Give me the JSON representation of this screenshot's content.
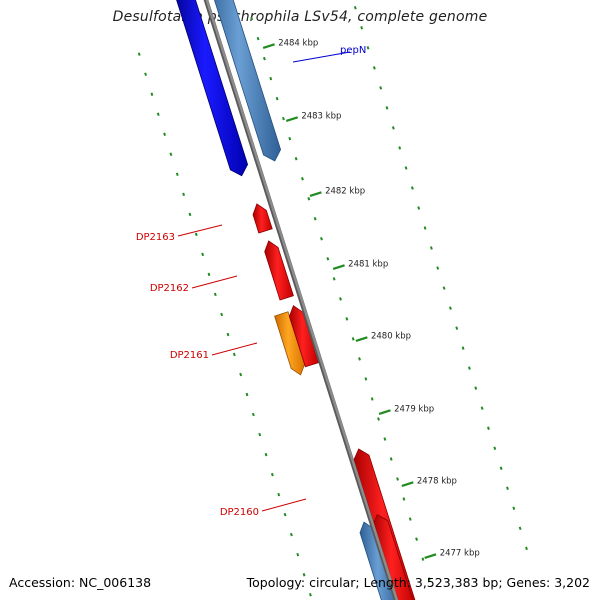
{
  "title": "Desulfotalea psychrophila LSv54, complete genome",
  "footer": {
    "accession": "Accession: NC_006138",
    "summary": "Topology: circular; Length: 3,523,383 bp; Genes: 3,202"
  },
  "scale": {
    "unit": "kbp",
    "ticks": [
      {
        "label": "2484 kbp",
        "value": 2484
      },
      {
        "label": "2483 kbp",
        "value": 2483
      },
      {
        "label": "2482 kbp",
        "value": 2482
      },
      {
        "label": "2481 kbp",
        "value": 2481
      },
      {
        "label": "2480 kbp",
        "value": 2480
      },
      {
        "label": "2479 kbp",
        "value": 2479
      },
      {
        "label": "2478 kbp",
        "value": 2478
      },
      {
        "label": "2477 kbp",
        "value": 2477
      }
    ]
  },
  "genes": [
    {
      "name": "pepN",
      "label_color": "#0000cc",
      "feature_color": "#0000ff"
    },
    {
      "name": "DP2163",
      "label_color": "#cc0000",
      "feature_color": "#ff0000"
    },
    {
      "name": "DP2162",
      "label_color": "#cc0000",
      "feature_color": "#ff0000"
    },
    {
      "name": "DP2161",
      "label_color": "#cc0000",
      "feature_color": "#ff0000"
    },
    {
      "name": "DP2160",
      "label_color": "#cc0000",
      "feature_color": "#ff0000"
    }
  ],
  "colors": {
    "backbone": "#8c8c8c",
    "tick": "#228b22",
    "cds_forward_strand": "#ff0000",
    "cds_reverse_strand": "#ff0000",
    "pepN": "#0000ff",
    "secondary_blue": "#4a84c4",
    "orange": "#ff9900"
  }
}
